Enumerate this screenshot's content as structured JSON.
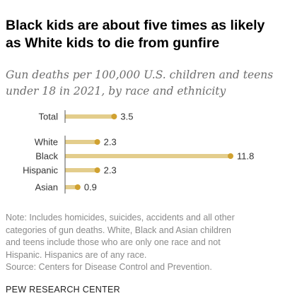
{
  "header": {
    "title": "Black kids are about five times as likely as White kids to die from gunfire",
    "subtitle": "Gun deaths per 100,000 U.S. children and teens under 18 in 2021, by race and ethnicity"
  },
  "chart_data": {
    "type": "bar",
    "orientation": "horizontal",
    "categories": [
      "Total",
      "White",
      "Black",
      "Hispanic",
      "Asian"
    ],
    "values": [
      3.5,
      2.3,
      11.8,
      2.3,
      0.9
    ],
    "value_labels": [
      "3.5",
      "2.3",
      "11.8",
      "2.3",
      "0.9"
    ],
    "xlim": [
      0,
      11.8
    ],
    "grid": false,
    "legend": "none",
    "colors": {
      "bar": "#e3cd8c",
      "dot": "#d0a130",
      "axis": "#555555",
      "text": "#333333"
    }
  },
  "footer": {
    "note_lines": [
      "Note: Includes homicides, suicides, accidents and all other",
      "categories of gun deaths. White, Black and Asian children",
      "and teens include those who are only one race and not",
      "Hispanic. Hispanics are of any race."
    ],
    "source": "Source: Centers for Disease Control and Prevention.",
    "brand": "PEW RESEARCH CENTER"
  }
}
